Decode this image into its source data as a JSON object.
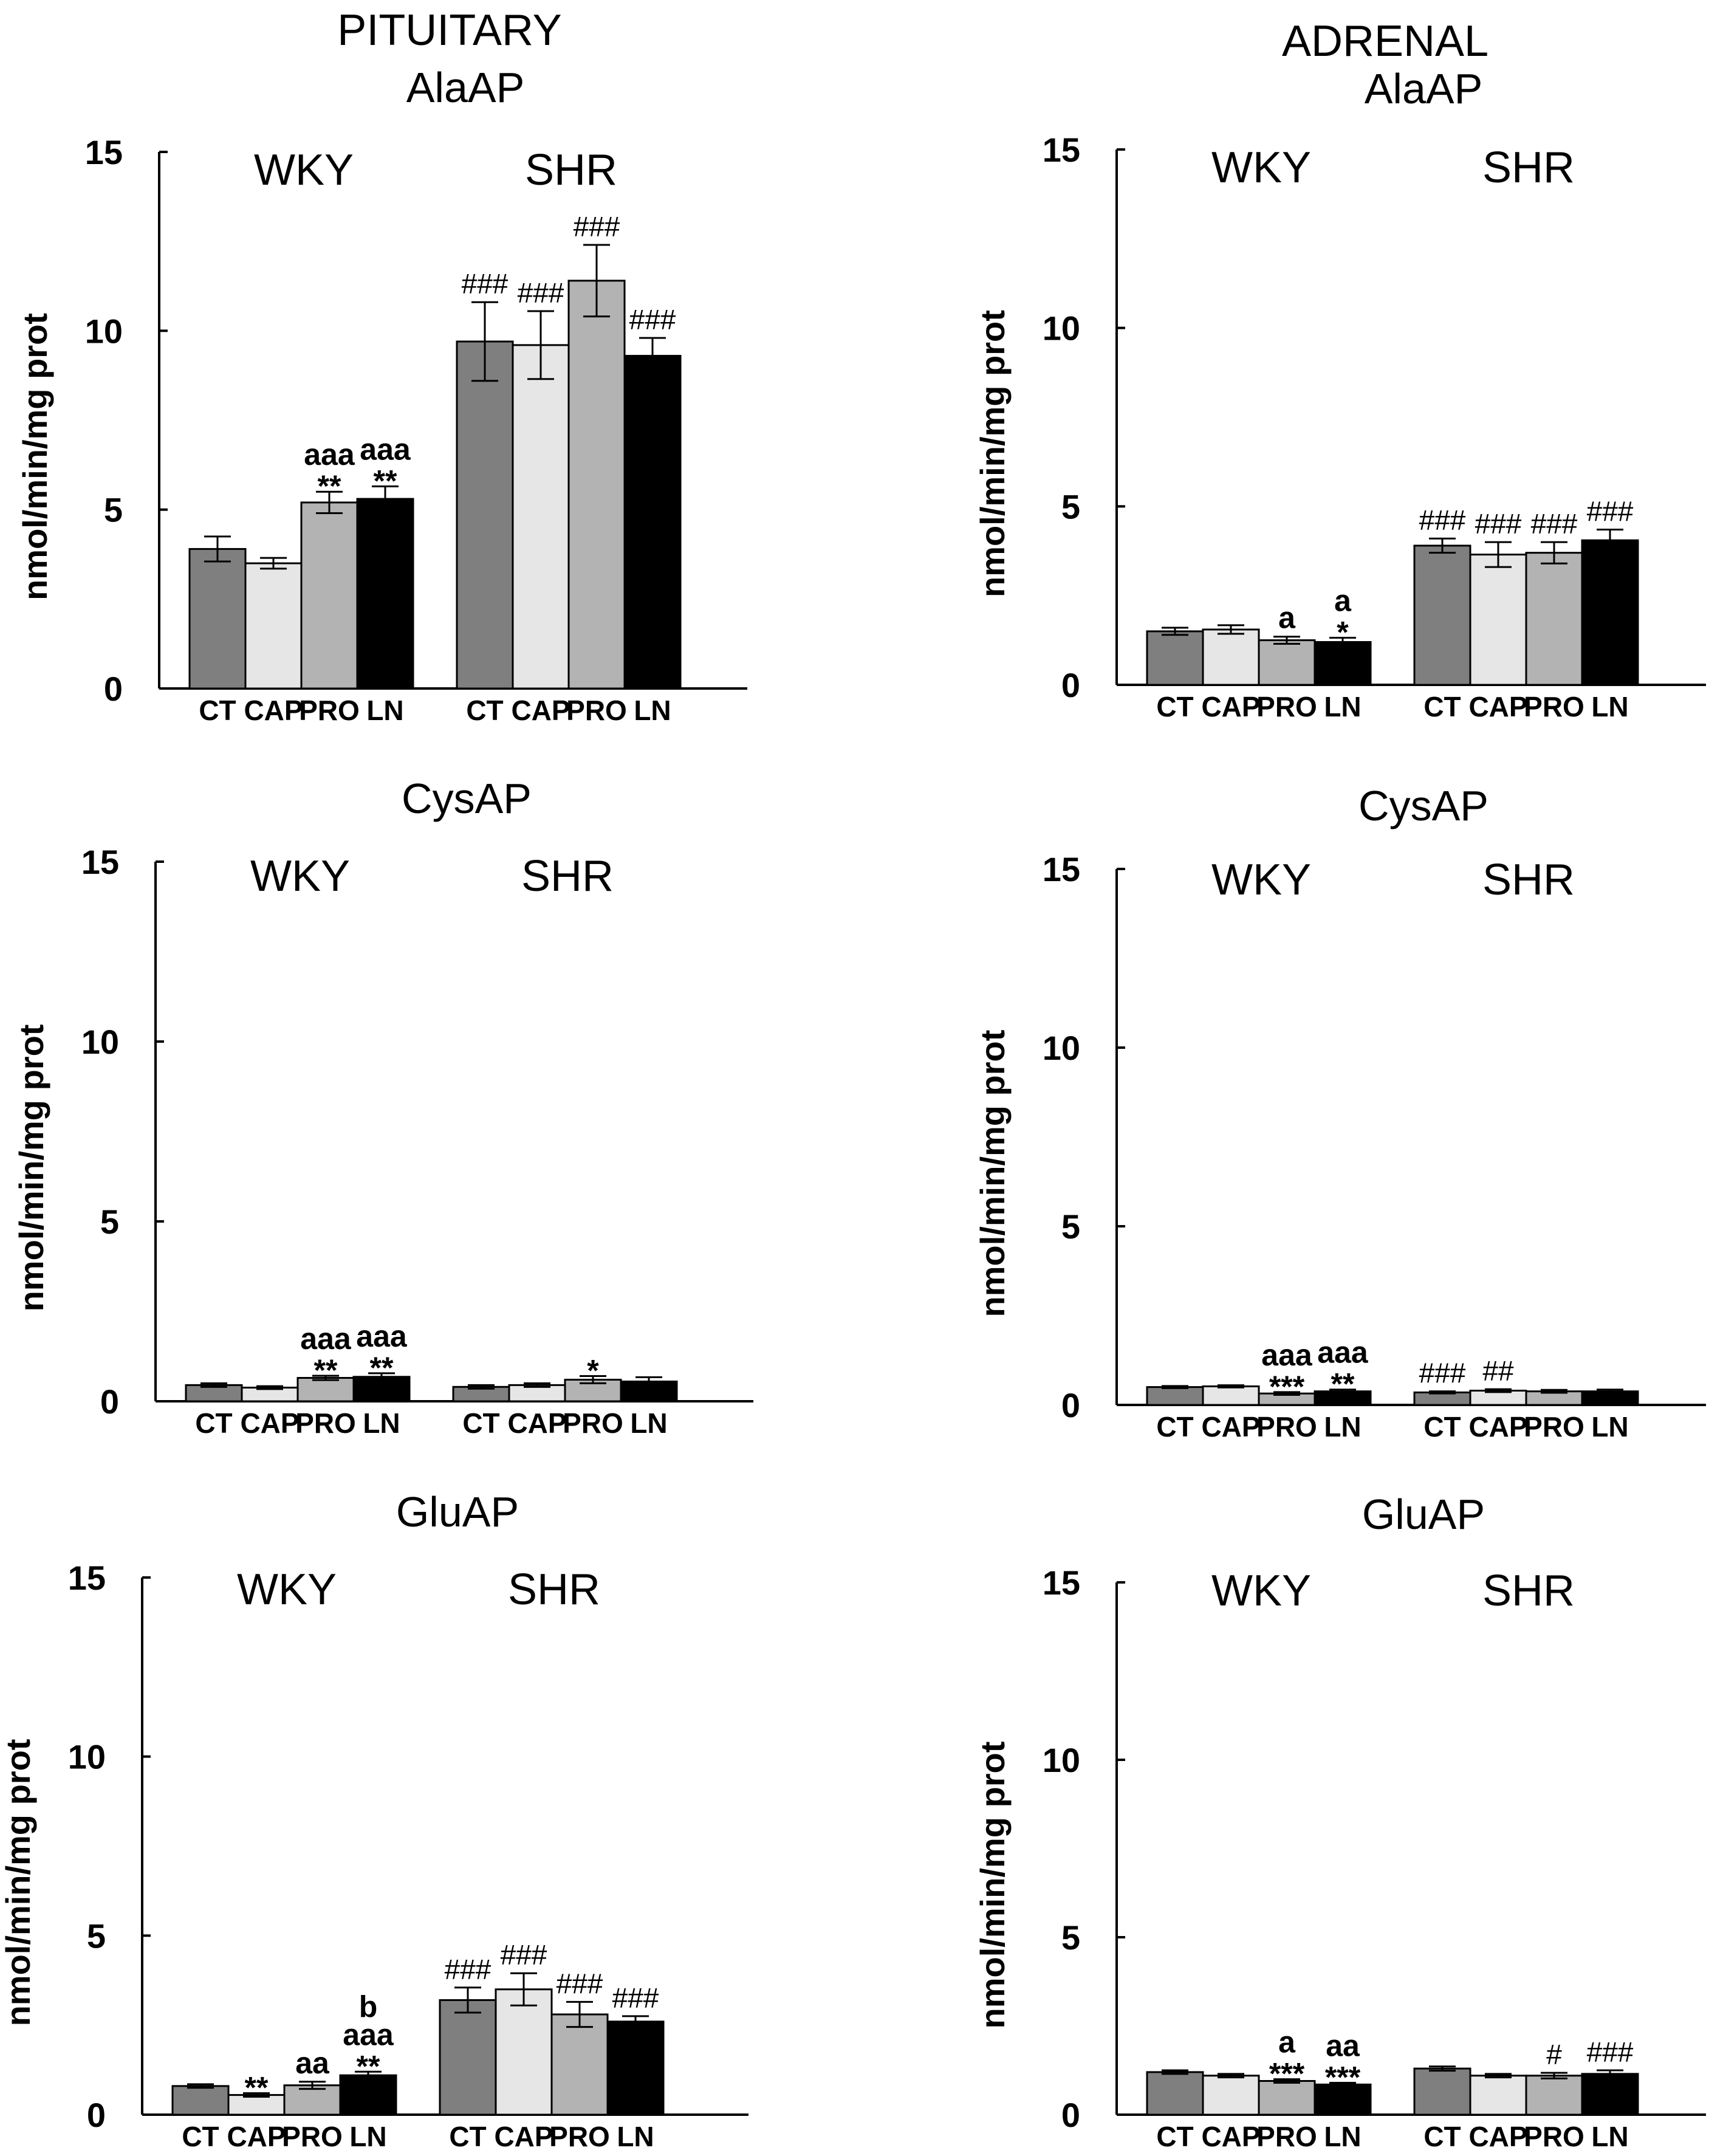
{
  "figure": {
    "left_heading": "PITUITARY",
    "right_heading": "ADRENAL",
    "y_label": "nmol/min/mg prot",
    "y_ticks": [
      "0",
      "5",
      "10",
      "15"
    ],
    "groups": [
      "WKY",
      "SHR"
    ],
    "categories": [
      "CT",
      "CAP",
      "PRO",
      "LN"
    ],
    "colors": {
      "CT": "#7f7f7f",
      "CAP": "#e6e6e6",
      "PRO": "#b3b3b3",
      "LN": "#000000"
    }
  },
  "chart_data": [
    {
      "type": "bar",
      "tissue": "PITUITARY",
      "title": "AlaAP",
      "ylabel": "nmol/min/mg prot",
      "ylim": [
        0,
        15
      ],
      "groups": [
        "WKY",
        "SHR"
      ],
      "categories": [
        "CT",
        "CAP",
        "PRO",
        "LN"
      ],
      "series": [
        {
          "name": "WKY",
          "values": [
            3.9,
            3.5,
            5.2,
            5.3
          ],
          "errors": [
            0.35,
            0.15,
            0.3,
            0.35
          ],
          "annotations": [
            [],
            [],
            [
              "aaa",
              "**"
            ],
            [
              "aaa",
              "**"
            ]
          ]
        },
        {
          "name": "SHR",
          "values": [
            9.7,
            9.6,
            11.4,
            9.3
          ],
          "errors": [
            1.1,
            0.95,
            1.0,
            0.5
          ],
          "annotations": [
            [
              "###"
            ],
            [
              "###"
            ],
            [
              "###"
            ],
            [
              "###"
            ]
          ]
        }
      ]
    },
    {
      "type": "bar",
      "tissue": "ADRENAL",
      "title": "AlaAP",
      "ylabel": "nmol/min/mg prot",
      "ylim": [
        0,
        15
      ],
      "groups": [
        "WKY",
        "SHR"
      ],
      "categories": [
        "CT",
        "CAP",
        "PRO",
        "LN"
      ],
      "series": [
        {
          "name": "WKY",
          "values": [
            1.5,
            1.55,
            1.25,
            1.2
          ],
          "errors": [
            0.1,
            0.12,
            0.1,
            0.12
          ],
          "annotations": [
            [],
            [],
            [
              "a"
            ],
            [
              "a",
              "*"
            ]
          ]
        },
        {
          "name": "SHR",
          "values": [
            3.9,
            3.65,
            3.7,
            4.05
          ],
          "errors": [
            0.2,
            0.35,
            0.3,
            0.3
          ],
          "annotations": [
            [
              "###"
            ],
            [
              "###"
            ],
            [
              "###"
            ],
            [
              "###"
            ]
          ]
        }
      ]
    },
    {
      "type": "bar",
      "tissue": "PITUITARY",
      "title": "CysAP",
      "ylabel": "nmol/min/mg prot",
      "ylim": [
        0,
        15
      ],
      "groups": [
        "WKY",
        "SHR"
      ],
      "categories": [
        "CT",
        "CAP",
        "PRO",
        "LN"
      ],
      "series": [
        {
          "name": "WKY",
          "values": [
            0.45,
            0.38,
            0.65,
            0.68
          ],
          "errors": [
            0.05,
            0.04,
            0.06,
            0.1
          ],
          "annotations": [
            [],
            [],
            [
              "aaa",
              "**"
            ],
            [
              "aaa",
              "**"
            ]
          ]
        },
        {
          "name": "SHR",
          "values": [
            0.4,
            0.45,
            0.6,
            0.55
          ],
          "errors": [
            0.05,
            0.05,
            0.1,
            0.12
          ],
          "annotations": [
            [],
            [],
            [
              "*"
            ],
            []
          ]
        }
      ]
    },
    {
      "type": "bar",
      "tissue": "ADRENAL",
      "title": "CysAP",
      "ylabel": "nmol/min/mg prot",
      "ylim": [
        0,
        15
      ],
      "groups": [
        "WKY",
        "SHR"
      ],
      "categories": [
        "CT",
        "CAP",
        "PRO",
        "LN"
      ],
      "series": [
        {
          "name": "WKY",
          "values": [
            0.5,
            0.52,
            0.32,
            0.38
          ],
          "errors": [
            0.03,
            0.03,
            0.04,
            0.05
          ],
          "annotations": [
            [],
            [],
            [
              "aaa",
              "***"
            ],
            [
              "aaa",
              "**"
            ]
          ]
        },
        {
          "name": "SHR",
          "values": [
            0.35,
            0.4,
            0.38,
            0.38
          ],
          "errors": [
            0.03,
            0.04,
            0.04,
            0.05
          ],
          "annotations": [
            [
              "###"
            ],
            [
              "##"
            ],
            [],
            []
          ]
        }
      ]
    },
    {
      "type": "bar",
      "tissue": "PITUITARY",
      "title": "GluAP",
      "ylabel": "nmol/min/mg prot",
      "ylim": [
        0,
        15
      ],
      "groups": [
        "WKY",
        "SHR"
      ],
      "categories": [
        "CT",
        "CAP",
        "PRO",
        "LN"
      ],
      "series": [
        {
          "name": "WKY",
          "values": [
            0.8,
            0.55,
            0.82,
            1.1
          ],
          "errors": [
            0.05,
            0.05,
            0.1,
            0.1
          ],
          "annotations": [
            [],
            [
              "**"
            ],
            [
              "aa"
            ],
            [
              "b",
              "aaa",
              "**"
            ]
          ]
        },
        {
          "name": "SHR",
          "values": [
            3.2,
            3.5,
            2.8,
            2.6
          ],
          "errors": [
            0.35,
            0.45,
            0.35,
            0.15
          ],
          "annotations": [
            [
              "###"
            ],
            [
              "###"
            ],
            [
              "###"
            ],
            [
              "###"
            ]
          ]
        }
      ]
    },
    {
      "type": "bar",
      "tissue": "ADRENAL",
      "title": "GluAP",
      "ylabel": "nmol/min/mg prot",
      "ylim": [
        0,
        15
      ],
      "groups": [
        "WKY",
        "SHR"
      ],
      "categories": [
        "CT",
        "CAP",
        "PRO",
        "LN"
      ],
      "series": [
        {
          "name": "WKY",
          "values": [
            1.2,
            1.1,
            0.95,
            0.85
          ],
          "errors": [
            0.05,
            0.05,
            0.05,
            0.05
          ],
          "annotations": [
            [],
            [],
            [
              "a",
              "***"
            ],
            [
              "aa",
              "***"
            ]
          ]
        },
        {
          "name": "SHR",
          "values": [
            1.3,
            1.1,
            1.1,
            1.15
          ],
          "errors": [
            0.06,
            0.05,
            0.08,
            0.1
          ],
          "annotations": [
            [],
            [],
            [
              "#"
            ],
            [
              "###"
            ]
          ]
        }
      ]
    }
  ]
}
